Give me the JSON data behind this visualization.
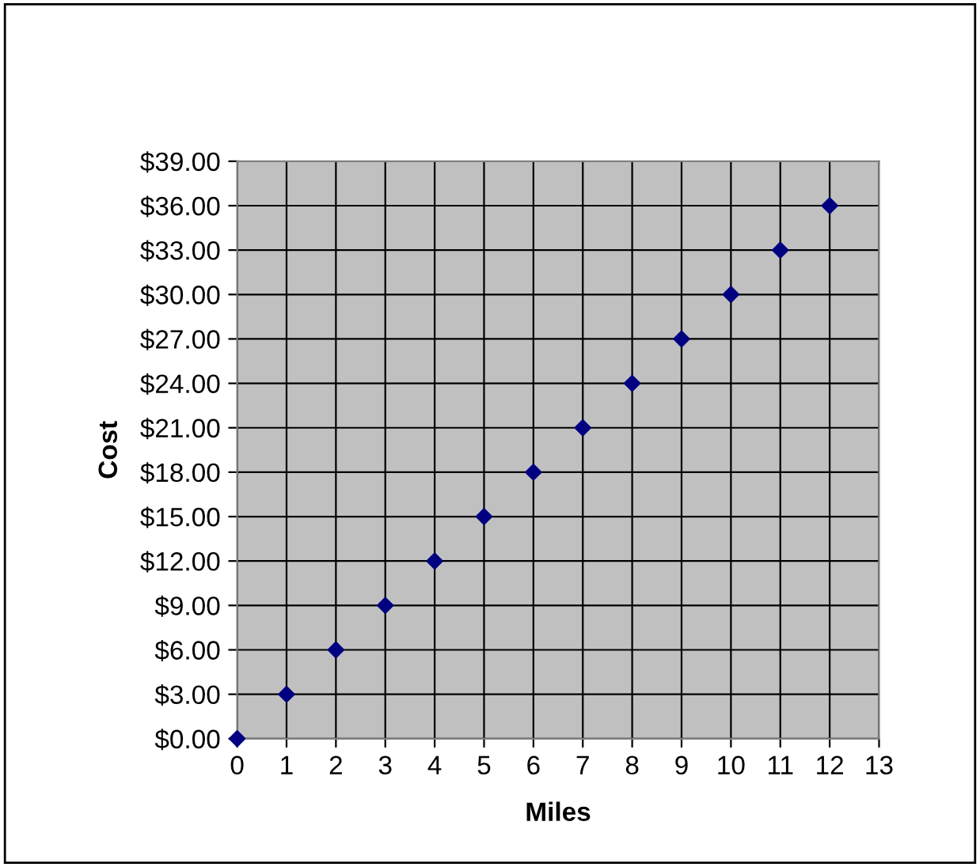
{
  "chart_data": {
    "type": "scatter",
    "xlabel": "Miles",
    "ylabel": "Cost",
    "x": [
      0,
      1,
      2,
      3,
      4,
      5,
      6,
      7,
      8,
      9,
      10,
      11,
      12
    ],
    "series": [
      {
        "color": "#000080",
        "values": [
          0,
          3,
          6,
          9,
          12,
          15,
          18,
          21,
          24,
          27,
          30,
          33,
          36
        ]
      }
    ],
    "xlim": [
      0,
      13
    ],
    "xticks": [
      0,
      1,
      2,
      3,
      4,
      5,
      6,
      7,
      8,
      9,
      10,
      11,
      12,
      13
    ],
    "ylim": [
      0,
      39
    ],
    "yticks": [
      {
        "value": 0,
        "label": "$0.00"
      },
      {
        "value": 3,
        "label": "$3.00"
      },
      {
        "value": 6,
        "label": "$6.00"
      },
      {
        "value": 9,
        "label": "$9.00"
      },
      {
        "value": 12,
        "label": "$12.00"
      },
      {
        "value": 15,
        "label": "$15.00"
      },
      {
        "value": 18,
        "label": "$18.00"
      },
      {
        "value": 21,
        "label": "$21.00"
      },
      {
        "value": 24,
        "label": "$24.00"
      },
      {
        "value": 27,
        "label": "$27.00"
      },
      {
        "value": 30,
        "label": "$30.00"
      },
      {
        "value": 33,
        "label": "$33.00"
      },
      {
        "value": 36,
        "label": "$36.00"
      },
      {
        "value": 39,
        "label": "$39.00"
      }
    ],
    "grid": true,
    "marker": "diamond"
  }
}
